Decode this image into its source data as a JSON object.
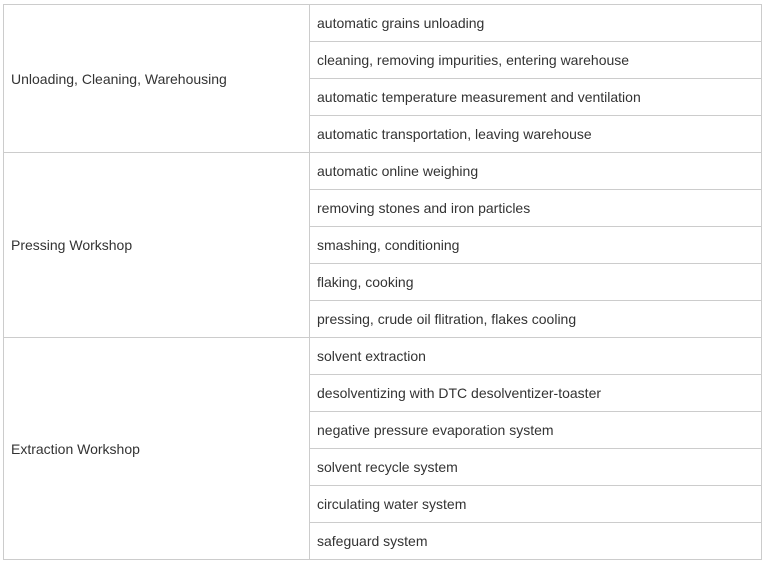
{
  "groups": [
    {
      "name": "Unloading, Cleaning, Warehousing",
      "items": [
        "automatic grains unloading",
        "cleaning, removing impurities, entering warehouse",
        "automatic temperature measurement and ventilation",
        "automatic transportation, leaving warehouse"
      ]
    },
    {
      "name": "Pressing Workshop",
      "items": [
        "automatic online weighing",
        "removing stones and iron particles",
        "smashing, conditioning",
        "flaking, cooking",
        "pressing, crude oil flitration, flakes cooling"
      ]
    },
    {
      "name": "Extraction Workshop",
      "items": [
        "solvent extraction",
        "desolventizing with DTC desolventizer-toaster",
        "negative pressure evaporation system",
        "solvent recycle system",
        "circulating water system",
        "safeguard system"
      ]
    }
  ]
}
